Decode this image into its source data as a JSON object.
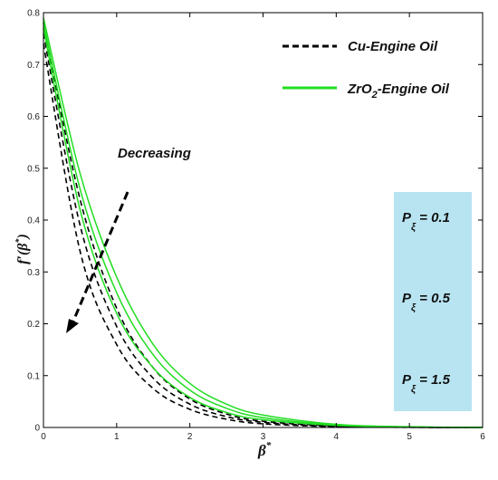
{
  "chart_data": {
    "type": "line",
    "xlabel": "β*",
    "ylabel": "f′(β*)",
    "xlim": [
      0,
      6
    ],
    "ylim": [
      0,
      0.8
    ],
    "xticks": [
      0,
      1,
      2,
      3,
      4,
      5,
      6
    ],
    "yticks": [
      0,
      0.1,
      0.2,
      0.3,
      0.4,
      0.5,
      0.6,
      0.7,
      0.8
    ],
    "legend": [
      {
        "label": "Cu-Engine Oil",
        "style": "dashed",
        "color": "#000000"
      },
      {
        "label": "ZrO2-Engine Oil",
        "style": "solid",
        "color": "#22dd22"
      }
    ],
    "annotation": {
      "text": "Decreasing",
      "arrow": "dashed",
      "direction": "down-left"
    },
    "parameter_box": {
      "color": "#b8e4f2",
      "labels": [
        "P_ξ = 0.1",
        "P_ξ = 0.5",
        "P_ξ = 1.5"
      ],
      "values": [
        0.1,
        0.5,
        1.5
      ]
    },
    "series": [
      {
        "fluid": "Cu-Engine Oil",
        "P_xi": 0.1,
        "x": [
          0,
          0.5,
          1,
          1.5,
          2,
          2.5,
          3,
          4,
          5,
          6
        ],
        "y": [
          0.78,
          0.44,
          0.23,
          0.115,
          0.055,
          0.026,
          0.012,
          0.003,
          0.0005,
          0
        ]
      },
      {
        "fluid": "Cu-Engine Oil",
        "P_xi": 0.5,
        "x": [
          0,
          0.5,
          1,
          1.5,
          2,
          2.5,
          3,
          4,
          5,
          6
        ],
        "y": [
          0.76,
          0.39,
          0.195,
          0.095,
          0.045,
          0.021,
          0.01,
          0.002,
          0.0004,
          0
        ]
      },
      {
        "fluid": "Cu-Engine Oil",
        "P_xi": 1.5,
        "x": [
          0,
          0.5,
          1,
          1.5,
          2,
          2.5,
          3,
          4,
          5,
          6
        ],
        "y": [
          0.74,
          0.34,
          0.16,
          0.075,
          0.035,
          0.016,
          0.007,
          0.0015,
          0.0003,
          0
        ]
      },
      {
        "fluid": "ZrO2-Engine Oil",
        "P_xi": 0.1,
        "x": [
          0,
          0.5,
          1,
          1.5,
          2,
          2.5,
          3,
          4,
          5,
          6
        ],
        "y": [
          0.79,
          0.49,
          0.29,
          0.16,
          0.085,
          0.045,
          0.024,
          0.006,
          0.0015,
          0
        ]
      },
      {
        "fluid": "ZrO2-Engine Oil",
        "P_xi": 0.5,
        "x": [
          0,
          0.5,
          1,
          1.5,
          2,
          2.5,
          3,
          4,
          5,
          6
        ],
        "y": [
          0.78,
          0.46,
          0.26,
          0.14,
          0.072,
          0.037,
          0.019,
          0.005,
          0.001,
          0
        ]
      },
      {
        "fluid": "ZrO2-Engine Oil",
        "P_xi": 1.5,
        "x": [
          0,
          0.5,
          1,
          1.5,
          2,
          2.5,
          3,
          4,
          5,
          6
        ],
        "y": [
          0.77,
          0.42,
          0.22,
          0.115,
          0.058,
          0.029,
          0.015,
          0.004,
          0.0008,
          0
        ]
      }
    ]
  },
  "colors": {
    "cu": "#000000",
    "zro2": "#22dd22",
    "box": "#b8e4f2"
  }
}
